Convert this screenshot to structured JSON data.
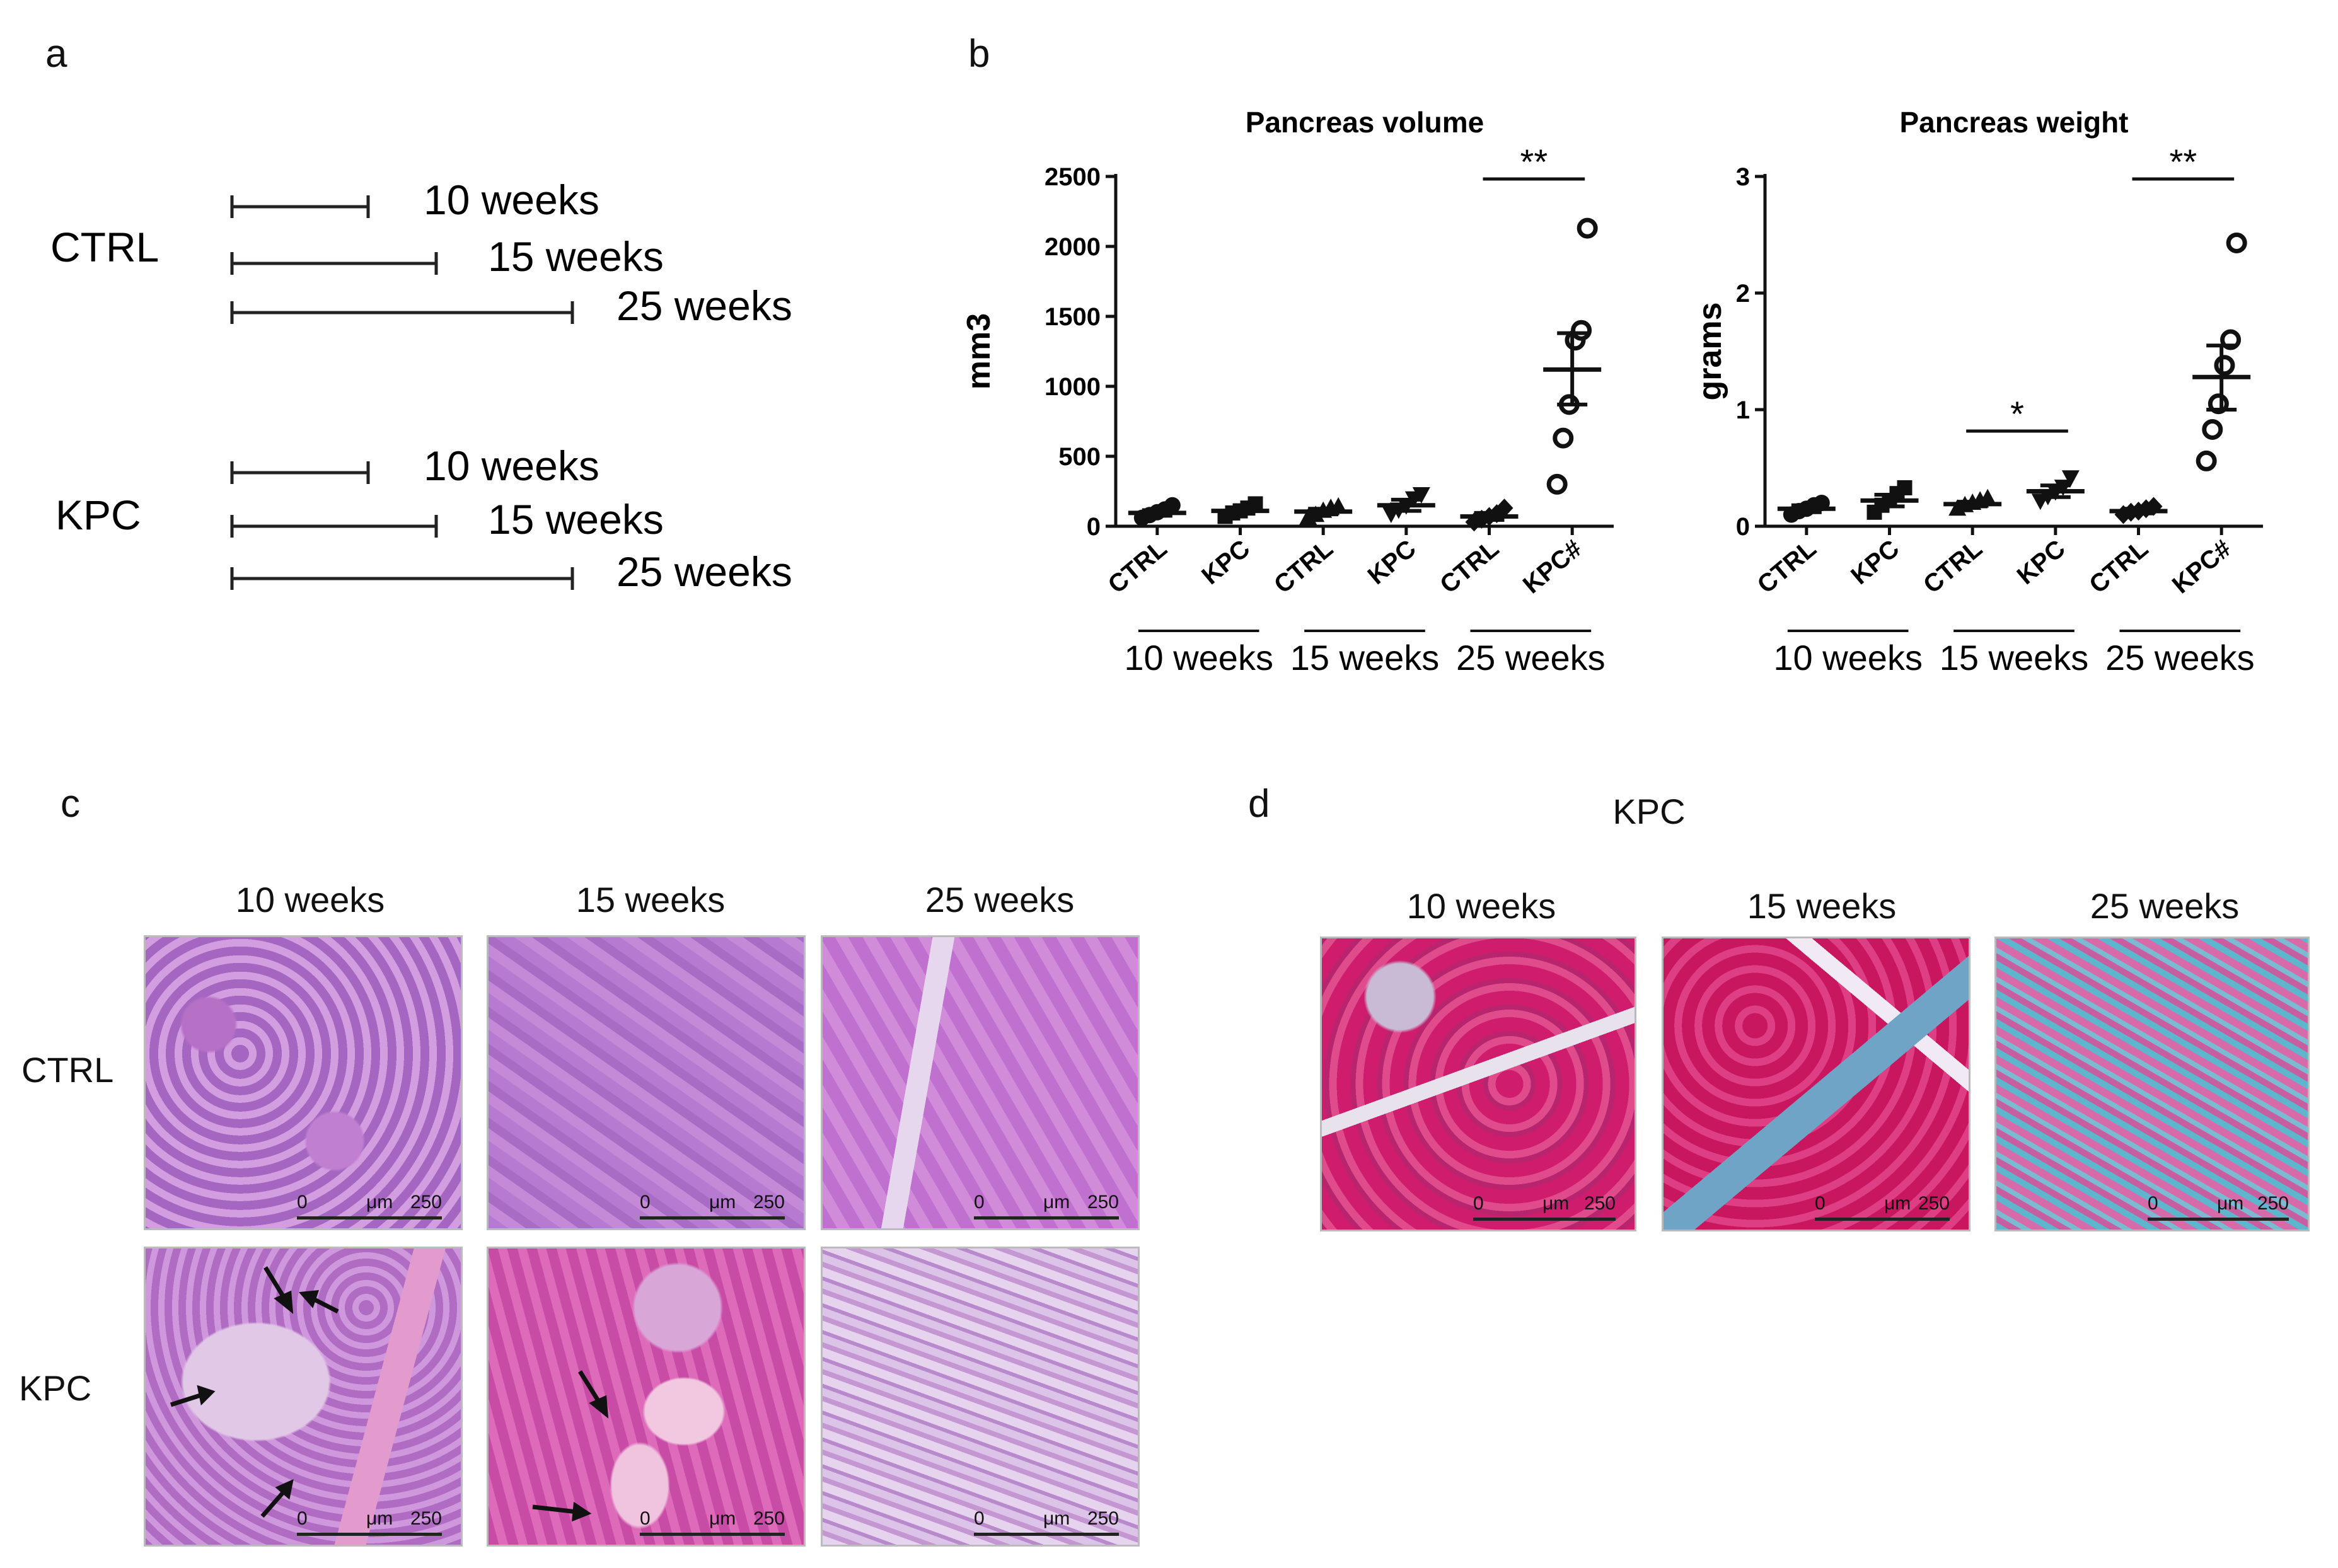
{
  "panels": {
    "a": "a",
    "b": "b",
    "c": "c",
    "d": "d"
  },
  "timeline": {
    "groups": [
      {
        "label": "CTRL",
        "bars": [
          {
            "label": "10 weeks",
            "weeks": 10
          },
          {
            "label": "15 weeks",
            "weeks": 15
          },
          {
            "label": "25 weeks",
            "weeks": 25
          }
        ]
      },
      {
        "label": "KPC",
        "bars": [
          {
            "label": "10 weeks",
            "weeks": 10
          },
          {
            "label": "15 weeks",
            "weeks": 15
          },
          {
            "label": "25 weeks",
            "weeks": 25
          }
        ]
      }
    ]
  },
  "chart_data": [
    {
      "type": "scatter",
      "title": "Pancreas volume",
      "ylabel": "mm3",
      "ylim": [
        0,
        2500
      ],
      "yticks": [
        0,
        500,
        1000,
        1500,
        2000,
        2500
      ],
      "categories": [
        "CTRL",
        "KPC",
        "CTRL",
        "KPC",
        "CTRL",
        "KPC#"
      ],
      "groups": [
        "10 weeks",
        "15 weeks",
        "25 weeks"
      ],
      "series": [
        {
          "values": [
            [
              60,
              80,
              100,
              120,
              150
            ],
            [
              70,
              95,
              110,
              130,
              160
            ],
            [
              60,
              80,
              110,
              130,
              140
            ],
            [
              90,
              120,
              150,
              200,
              230
            ],
            [
              30,
              50,
              70,
              90,
              130
            ],
            [
              300,
              630,
              870,
              1330,
              1400,
              2130
            ]
          ],
          "mean": [
            95,
            110,
            105,
            150,
            70,
            1120
          ],
          "sem_low": [
            75,
            90,
            85,
            110,
            45,
            870
          ],
          "sem_high": [
            115,
            130,
            125,
            190,
            95,
            1380
          ]
        }
      ],
      "significance": [
        {
          "group": "25 weeks",
          "label": "**"
        }
      ],
      "grid": false
    },
    {
      "type": "scatter",
      "title": "Pancreas weight",
      "ylabel": "grams",
      "ylim": [
        0,
        3
      ],
      "yticks": [
        0,
        1,
        2,
        3
      ],
      "categories": [
        "CTRL",
        "KPC",
        "CTRL",
        "KPC",
        "CTRL",
        "KPC#"
      ],
      "groups": [
        "10 weeks",
        "15 weeks",
        "25 weeks"
      ],
      "series": [
        {
          "values": [
            [
              0.1,
              0.13,
              0.15,
              0.18,
              0.2
            ],
            [
              0.12,
              0.18,
              0.22,
              0.28,
              0.33
            ],
            [
              0.15,
              0.18,
              0.2,
              0.22,
              0.24
            ],
            [
              0.22,
              0.26,
              0.3,
              0.34,
              0.42
            ],
            [
              0.1,
              0.12,
              0.13,
              0.15,
              0.17
            ],
            [
              0.56,
              0.83,
              1.05,
              1.38,
              1.6,
              2.43
            ]
          ],
          "mean": [
            0.15,
            0.22,
            0.19,
            0.3,
            0.13,
            1.28
          ],
          "sem_low": [
            0.12,
            0.17,
            0.17,
            0.25,
            0.11,
            1.0
          ],
          "sem_high": [
            0.18,
            0.27,
            0.21,
            0.35,
            0.15,
            1.55
          ]
        }
      ],
      "significance": [
        {
          "group": "15 weeks",
          "label": "*"
        },
        {
          "group": "25 weeks",
          "label": "**"
        }
      ],
      "grid": false
    }
  ],
  "histology_c": {
    "columns": [
      "10 weeks",
      "15 weeks",
      "25 weeks"
    ],
    "rows": [
      "CTRL",
      "KPC"
    ],
    "scale": {
      "start": "0",
      "unit": "μm",
      "end": "250"
    }
  },
  "histology_d": {
    "title": "KPC",
    "columns": [
      "10 weeks",
      "15 weeks",
      "25 weeks"
    ],
    "scale": {
      "start": "0",
      "unit": "μm",
      "end": "250"
    }
  },
  "colors": {
    "he_pink": "#c678c8",
    "he_purple": "#9a5bb5",
    "trichrome_red": "#d0206a",
    "trichrome_blue": "#5fb0c9"
  }
}
